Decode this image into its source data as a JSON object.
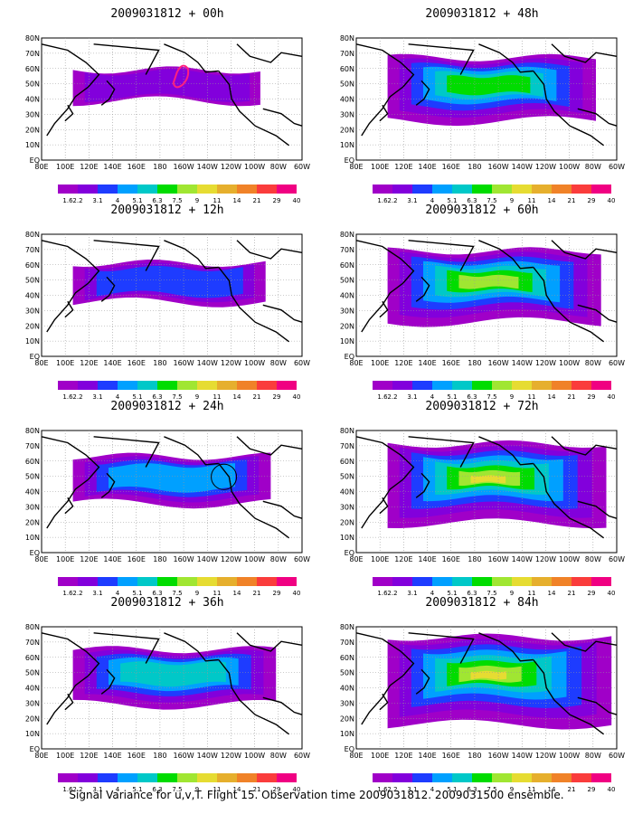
{
  "caption": "Signal Variance for u,v,T. Flight 15. Observation time 2009031812. 2009031500 ensemble.",
  "longitude_labels": [
    "80E",
    "100E",
    "120E",
    "140E",
    "160E",
    "180",
    "160W",
    "140W",
    "120W",
    "100W",
    "80W",
    "60W"
  ],
  "latitude_labels": [
    "80N",
    "70N",
    "60N",
    "50N",
    "40N",
    "30N",
    "20N",
    "10N",
    "EQ"
  ],
  "colorbar_labels": [
    "1.6",
    "2.2",
    "3.1",
    "4",
    "5.1",
    "6.3",
    "7.5",
    "9",
    "11",
    "14",
    "21",
    "29",
    "40"
  ],
  "colorbar_colors": [
    "#a000c8",
    "#8200dc",
    "#1e3cff",
    "#00a0ff",
    "#00c8c8",
    "#00dc00",
    "#a0e632",
    "#e6dc32",
    "#e6af2d",
    "#f08228",
    "#fa3c3c",
    "#f00082"
  ],
  "panels": [
    {
      "title": "2009031812 + 00h",
      "level": 0
    },
    {
      "title": "2009031812 + 12h",
      "level": 1
    },
    {
      "title": "2009031812 + 24h",
      "level": 2
    },
    {
      "title": "2009031812 + 36h",
      "level": 3
    },
    {
      "title": "2009031812 + 48h",
      "level": 4
    },
    {
      "title": "2009031812 + 60h",
      "level": 5
    },
    {
      "title": "2009031812 + 72h",
      "level": 6
    },
    {
      "title": "2009031812 + 84h",
      "level": 7
    }
  ]
}
